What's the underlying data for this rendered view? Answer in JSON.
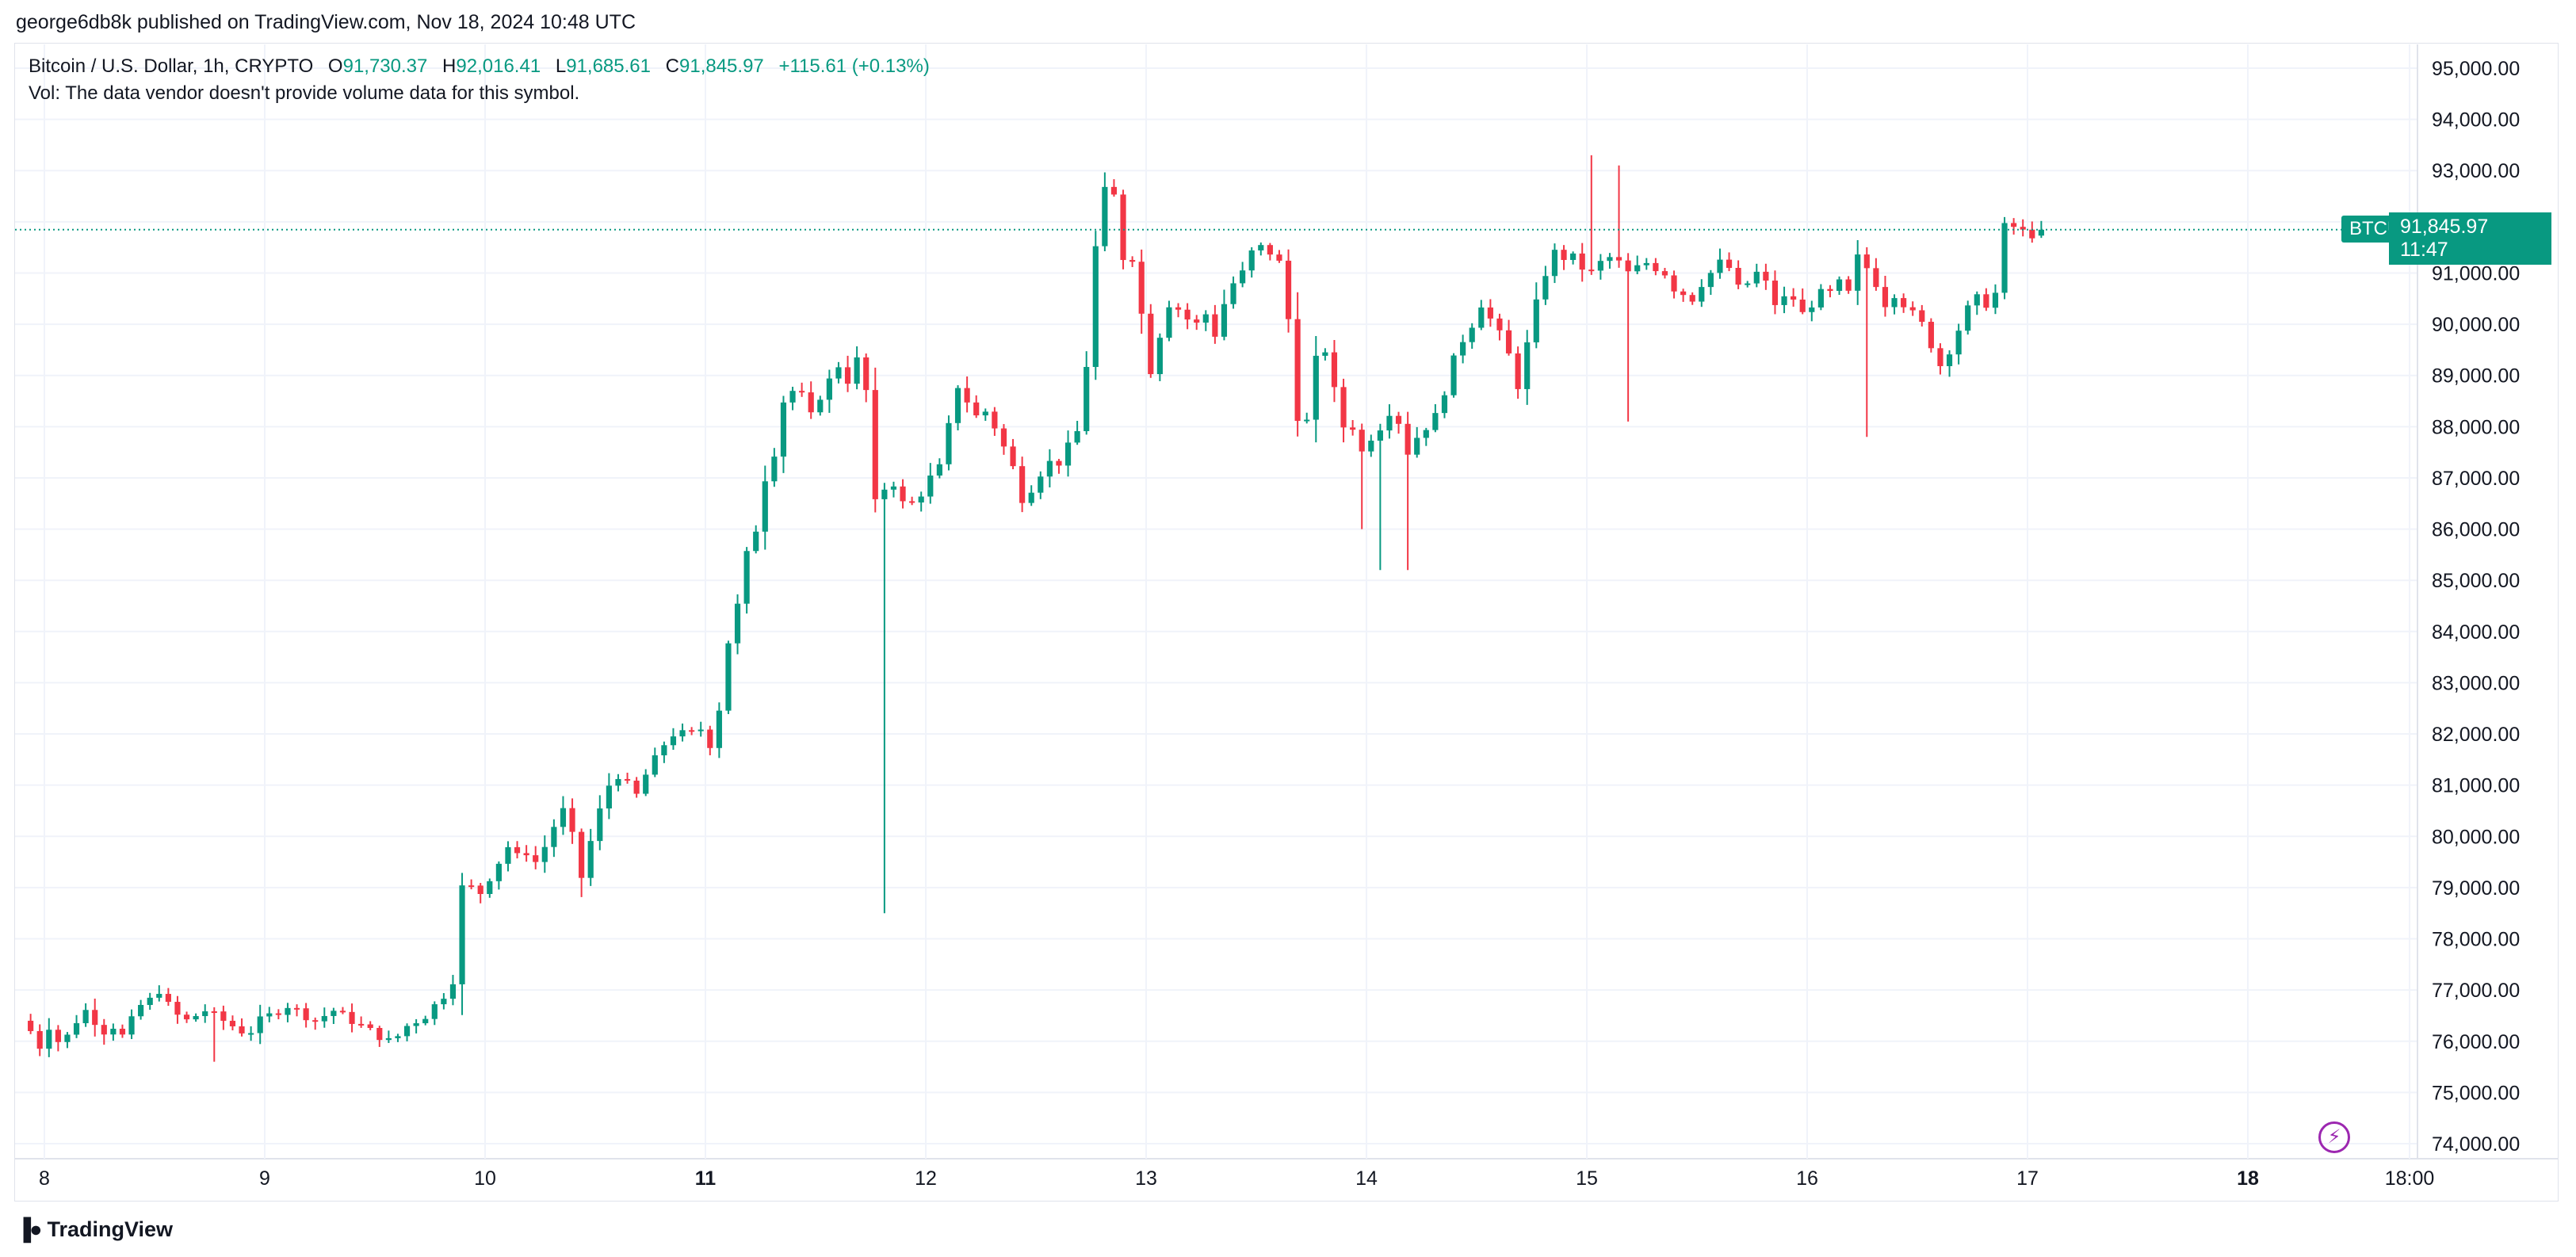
{
  "header": {
    "published": "george6db8k published on TradingView.com, Nov 18, 2024 10:48 UTC"
  },
  "legend": {
    "symbol": "Bitcoin / U.S. Dollar, 1h, CRYPTO",
    "open_label": "O",
    "open": "91,730.37",
    "high_label": "H",
    "high": "92,016.41",
    "low_label": "L",
    "low": "91,685.61",
    "close_label": "C",
    "close": "91,845.97",
    "change": "+115.61 (+0.13%)",
    "volume_note": "Vol: The data vendor doesn't provide volume data for this symbol."
  },
  "price_tag": {
    "symbol": "BTCUSD",
    "price": "91,845.97",
    "countdown": "11:47"
  },
  "footer": {
    "brand": "TradingView"
  },
  "colors": {
    "up": "#089981",
    "down": "#f23645",
    "grid": "#f0f3fa",
    "text": "#131722",
    "accent": "#9c27b0"
  },
  "icons": {
    "brand_icon": "tradingview-logo-icon",
    "alert_icon": "lightning-bolt-icon"
  },
  "chart_data": {
    "type": "candlestick",
    "title": "Bitcoin / U.S. Dollar, 1h, CRYPTO",
    "interval": "1h",
    "ylim": [
      73600,
      95400
    ],
    "yticks": [
      74000,
      75000,
      76000,
      77000,
      78000,
      79000,
      80000,
      81000,
      82000,
      83000,
      84000,
      85000,
      86000,
      87000,
      88000,
      89000,
      90000,
      91000,
      92000,
      93000,
      94000,
      95000
    ],
    "ytick_labels": [
      "74,000.00",
      "75,000.00",
      "76,000.00",
      "77,000.00",
      "78,000.00",
      "79,000.00",
      "80,000.00",
      "81,000.00",
      "82,000.00",
      "83,000.00",
      "84,000.00",
      "85,000.00",
      "86,000.00",
      "87,000.00",
      "88,000.00",
      "89,000.00",
      "90,000.00",
      "91,000.00",
      "92,000.00",
      "93,000.00",
      "94,000.00",
      "95,000.00"
    ],
    "xtick_labels": [
      "8",
      "9",
      "10",
      "11",
      "12",
      "13",
      "14",
      "15",
      "16",
      "17",
      "18",
      "18:00"
    ],
    "xtick_bold": [
      false,
      false,
      false,
      true,
      false,
      false,
      false,
      false,
      false,
      false,
      true,
      false
    ],
    "last_price": 91845.97,
    "grid": true,
    "daily_anchors": [
      [
        76200,
        75900,
        76300,
        76000,
        76100,
        76400,
        76600,
        76400,
        76200,
        76300,
        76100,
        76400,
        76700,
        76800,
        77000,
        76700,
        76500,
        76400,
        76500,
        76600,
        76500,
        76400,
        76300,
        76200
      ],
      [
        76200,
        76400,
        76500,
        76600,
        76700,
        76600,
        76500,
        76400,
        76500,
        76600,
        76500,
        76400,
        76300,
        76200,
        76100,
        76000,
        76100,
        76300,
        76400,
        76500,
        76700,
        76900,
        77200,
        79000
      ],
      [
        79000,
        78900,
        79200,
        79500,
        79800,
        79600,
        79700,
        79500,
        79800,
        80200,
        80500,
        80000,
        79200,
        79900,
        80500,
        81000,
        81200,
        81000,
        80800,
        81200,
        81500,
        81800,
        82000,
        82000
      ],
      [
        82000,
        82100,
        81800,
        82500,
        83800,
        84500,
        85500,
        86000,
        87000,
        87500,
        88500,
        88700,
        88600,
        88200,
        88600,
        88900,
        89200,
        88900,
        89300,
        88700,
        86500,
        86800,
        86900,
        86500
      ],
      [
        86500,
        86700,
        87000,
        87200,
        88000,
        88800,
        88500,
        88200,
        88300,
        88000,
        87600,
        87200,
        86600,
        86800,
        87100,
        87300,
        87300,
        87600,
        87900,
        89200,
        91500,
        92600,
        92500,
        91300
      ],
      [
        91300,
        90200,
        89100,
        89800,
        90400,
        90300,
        90100,
        90000,
        90200,
        89800,
        90400,
        90800,
        91000,
        91400,
        91500,
        91400,
        91200,
        90100,
        88200,
        88100,
        89300,
        89500,
        88700,
        88000
      ],
      [
        88000,
        87500,
        87800,
        88000,
        88300,
        88100,
        87500,
        87800,
        88000,
        88200,
        88700,
        89300,
        89700,
        90000,
        90400,
        90100,
        89800,
        89400,
        88800,
        89600,
        90400,
        91000,
        91400,
        91300
      ],
      [
        91300,
        91100,
        91000,
        91200,
        91300,
        91200,
        91000,
        91100,
        91200,
        91100,
        91000,
        90700,
        90600,
        90500,
        90800,
        91000,
        91200,
        91100,
        90700,
        90800,
        91000,
        90800,
        90400,
        90500
      ],
      [
        90500,
        90200,
        90400,
        90600,
        90600,
        90800,
        90600,
        91300,
        91100,
        90800,
        90400,
        90600,
        90400,
        90200,
        90000,
        89600,
        89200,
        89500,
        89900,
        90300,
        90500,
        90400,
        90600,
        91900
      ],
      [
        91900,
        91800,
        91750,
        91850
      ]
    ],
    "spikes": [
      {
        "index": 170,
        "high": 93300
      },
      {
        "index": 173,
        "high": 93100
      },
      {
        "index": 174,
        "low": 88100
      },
      {
        "index": 147,
        "low": 85200
      },
      {
        "index": 150,
        "low": 85200
      },
      {
        "index": 145,
        "low": 86000
      },
      {
        "index": 200,
        "low": 87800
      },
      {
        "index": 219,
        "low": 87000
      },
      {
        "index": 254,
        "low": 87800
      },
      {
        "index": 93,
        "low": 78500
      },
      {
        "index": 87,
        "high": 81400
      },
      {
        "index": 66,
        "high": 79800
      },
      {
        "index": 268,
        "low": 90100
      },
      {
        "index": 295,
        "low": 88800
      },
      {
        "index": 20,
        "low": 75600
      }
    ]
  }
}
